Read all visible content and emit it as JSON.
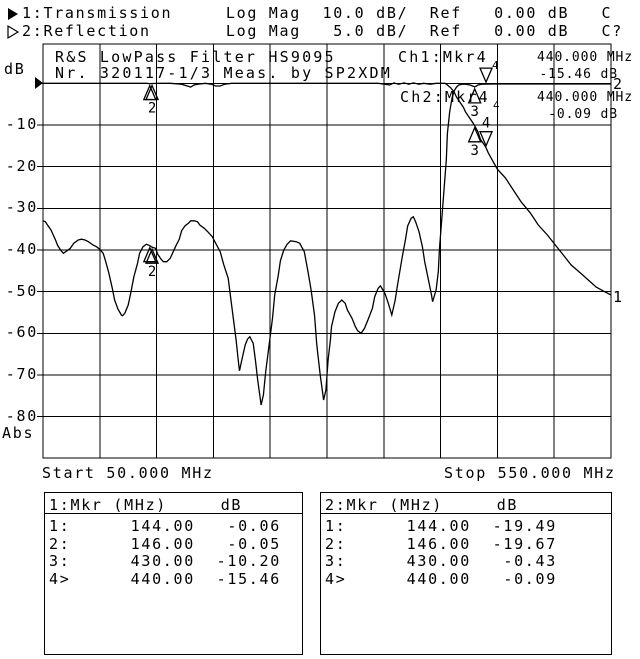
{
  "colors": {
    "foreground": "#000000",
    "background": "#ffffff"
  },
  "header": {
    "ch1_line": "1:Transmission     Log Mag  10.0 dB/  Ref   0.00 dB   C",
    "ch2_line": "2:Reflection       Log Mag   5.0 dB/  Ref   0.00 dB   C?"
  },
  "plot": {
    "title_line1": "R&S LowPass Filter HS9095",
    "title_line2": "Nr. 320117-1/3 Meas. by SP2XDM",
    "y_axis_unit": "dB",
    "y_axis_bottom": "Abs",
    "y_ticks": [
      "-10",
      "-20",
      "-30",
      "-40",
      "-50",
      "-60",
      "-70",
      "-80"
    ],
    "x_start_label": "Start 50.000 MHz",
    "x_stop_label": "Stop 550.000 MHz",
    "ch1_readout": {
      "label": "Ch1:Mkr4",
      "marker_sub": "4",
      "freq": "440.000 MHz",
      "value": "-15.46 dB"
    },
    "ch2_readout": {
      "label": "Ch2:Mkr4",
      "marker_sub": "4",
      "freq": "440.000 MHz",
      "value": "-0.09 dB"
    },
    "trace1_end_label": "1",
    "trace2_end_label": "2"
  },
  "chart_data": {
    "type": "line",
    "title": "R&S LowPass Filter HS9095",
    "xlabel": "Start 50.000 MHz ... Stop 550.000 MHz",
    "ylabel": "dB",
    "x_range_mhz": [
      50,
      550
    ],
    "x_divisions": 10,
    "y_divisions": 8,
    "grid": true,
    "series": [
      {
        "name": "Transmission",
        "channel": 1,
        "db_per_div": 10,
        "ref_db": 0,
        "points": [
          [
            50,
            0
          ],
          [
            65,
            0
          ],
          [
            83,
            0
          ],
          [
            100,
            0
          ],
          [
            118,
            0
          ],
          [
            135,
            0
          ],
          [
            141,
            0
          ],
          [
            144,
            -0.06
          ],
          [
            146,
            -0.05
          ],
          [
            153,
            0
          ],
          [
            162,
            0
          ],
          [
            172,
            -0.2
          ],
          [
            177,
            -0.65
          ],
          [
            180,
            -0.9
          ],
          [
            183,
            -0.4
          ],
          [
            186,
            -0.2
          ],
          [
            193,
            0
          ],
          [
            198,
            -0.2
          ],
          [
            202,
            -0.65
          ],
          [
            206,
            -0.65
          ],
          [
            210,
            -0.2
          ],
          [
            216,
            0
          ],
          [
            232,
            0
          ],
          [
            250,
            0
          ],
          [
            267,
            0
          ],
          [
            285,
            0
          ],
          [
            303,
            0
          ],
          [
            320,
            0
          ],
          [
            333,
            0
          ],
          [
            345,
            0
          ],
          [
            351,
            -0.2
          ],
          [
            355,
            -0.4
          ],
          [
            359,
            0.1
          ],
          [
            363,
            -0.2
          ],
          [
            368,
            0.1
          ],
          [
            372,
            -0.2
          ],
          [
            376,
            0.1
          ],
          [
            381,
            -0.2
          ],
          [
            385,
            0
          ],
          [
            391,
            -0.2
          ],
          [
            396,
            0
          ],
          [
            400,
            0
          ],
          [
            404,
            0
          ],
          [
            406,
            -0.4
          ],
          [
            409,
            -1.1
          ],
          [
            412,
            -2.1
          ],
          [
            414,
            -3.3
          ],
          [
            417,
            -4.5
          ],
          [
            420,
            -5.7
          ],
          [
            422,
            -6.9
          ],
          [
            425,
            -8.1
          ],
          [
            428,
            -9.3
          ],
          [
            430,
            -10.2
          ],
          [
            433,
            -11.7
          ],
          [
            435,
            -13.4
          ],
          [
            438,
            -14.6
          ],
          [
            440,
            -15.46
          ],
          [
            442,
            -16.7
          ],
          [
            446,
            -18.7
          ],
          [
            450,
            -20.6
          ],
          [
            457,
            -22.7
          ],
          [
            464,
            -25.6
          ],
          [
            471,
            -28.5
          ],
          [
            479,
            -31.1
          ],
          [
            486,
            -34
          ],
          [
            494,
            -36.4
          ],
          [
            501,
            -38.8
          ],
          [
            508,
            -41.2
          ],
          [
            515,
            -43.6
          ],
          [
            523,
            -45.5
          ],
          [
            530,
            -47.2
          ],
          [
            537,
            -48.9
          ],
          [
            545,
            -50.1
          ],
          [
            550,
            -50.8
          ]
        ]
      },
      {
        "name": "Reflection",
        "channel": 2,
        "db_per_div": 5,
        "ref_db": 0,
        "points": [
          [
            50,
            -16.5
          ],
          [
            52,
            -16.6
          ],
          [
            54,
            -17
          ],
          [
            57,
            -17.6
          ],
          [
            61,
            -18.8
          ],
          [
            63,
            -19.5
          ],
          [
            66,
            -20.1
          ],
          [
            68,
            -20.4
          ],
          [
            71,
            -20.1
          ],
          [
            74,
            -19.8
          ],
          [
            77,
            -19.2
          ],
          [
            81,
            -18.8
          ],
          [
            84,
            -18.7
          ],
          [
            87,
            -18.8
          ],
          [
            90,
            -19
          ],
          [
            94,
            -19.4
          ],
          [
            97,
            -19.6
          ],
          [
            100,
            -19.9
          ],
          [
            103,
            -20.4
          ],
          [
            105,
            -21.3
          ],
          [
            108,
            -22.8
          ],
          [
            111,
            -24.6
          ],
          [
            113,
            -26
          ],
          [
            116,
            -27.1
          ],
          [
            119,
            -27.8
          ],
          [
            120,
            -27.9
          ],
          [
            122,
            -27.6
          ],
          [
            125,
            -26.6
          ],
          [
            127,
            -25.3
          ],
          [
            130,
            -23.2
          ],
          [
            133,
            -21.7
          ],
          [
            135,
            -20.4
          ],
          [
            138,
            -19.6
          ],
          [
            141,
            -19.3
          ],
          [
            144,
            -19.49
          ],
          [
            146,
            -19.67
          ],
          [
            149,
            -19.8
          ],
          [
            151,
            -20.5
          ],
          [
            154,
            -21.1
          ],
          [
            156,
            -21.4
          ],
          [
            159,
            -21.4
          ],
          [
            162,
            -21
          ],
          [
            164,
            -20.4
          ],
          [
            167,
            -19.5
          ],
          [
            170,
            -18.7
          ],
          [
            172,
            -17.7
          ],
          [
            175,
            -17.1
          ],
          [
            178,
            -16.8
          ],
          [
            180,
            -16.5
          ],
          [
            183,
            -16.5
          ],
          [
            186,
            -16.6
          ],
          [
            188,
            -17
          ],
          [
            192,
            -17.4
          ],
          [
            195,
            -17.8
          ],
          [
            199,
            -18.4
          ],
          [
            202,
            -19.2
          ],
          [
            206,
            -20.2
          ],
          [
            209,
            -21.7
          ],
          [
            213,
            -23.4
          ],
          [
            216,
            -26.6
          ],
          [
            220,
            -30.8
          ],
          [
            222,
            -33.4
          ],
          [
            223,
            -34.5
          ],
          [
            225,
            -33.2
          ],
          [
            228,
            -31.4
          ],
          [
            230,
            -30.7
          ],
          [
            232,
            -30.4
          ],
          [
            235,
            -31.2
          ],
          [
            237,
            -33.2
          ],
          [
            239,
            -35.6
          ],
          [
            241,
            -37.6
          ],
          [
            242,
            -38.6
          ],
          [
            244,
            -37.4
          ],
          [
            246,
            -34.6
          ],
          [
            249,
            -31.4
          ],
          [
            252,
            -28.2
          ],
          [
            254,
            -25.4
          ],
          [
            257,
            -23.1
          ],
          [
            259,
            -21.3
          ],
          [
            262,
            -20
          ],
          [
            265,
            -19.3
          ],
          [
            268,
            -18.9
          ],
          [
            273,
            -19
          ],
          [
            276,
            -19.2
          ],
          [
            280,
            -20.2
          ],
          [
            283,
            -22.4
          ],
          [
            286,
            -24.8
          ],
          [
            289,
            -27.8
          ],
          [
            291,
            -31.4
          ],
          [
            294,
            -35
          ],
          [
            296,
            -37
          ],
          [
            297,
            -38
          ],
          [
            299,
            -36.8
          ],
          [
            301,
            -33.2
          ],
          [
            303,
            -30.8
          ],
          [
            304,
            -29.2
          ],
          [
            307,
            -27.4
          ],
          [
            310,
            -26.4
          ],
          [
            313,
            -26
          ],
          [
            316,
            -26.4
          ],
          [
            318,
            -27.2
          ],
          [
            322,
            -28.2
          ],
          [
            325,
            -29.2
          ],
          [
            327,
            -29.7
          ],
          [
            330,
            -30
          ],
          [
            333,
            -29.4
          ],
          [
            336,
            -28.4
          ],
          [
            340,
            -27
          ],
          [
            342,
            -25.6
          ],
          [
            345,
            -24.6
          ],
          [
            347,
            -24.3
          ],
          [
            351,
            -25.2
          ],
          [
            354,
            -26.4
          ],
          [
            357,
            -27.8
          ],
          [
            360,
            -26
          ],
          [
            362,
            -24.3
          ],
          [
            366,
            -21
          ],
          [
            369,
            -18.8
          ],
          [
            371,
            -17.1
          ],
          [
            374,
            -16.2
          ],
          [
            376,
            -16
          ],
          [
            378,
            -16.6
          ],
          [
            381,
            -17.8
          ],
          [
            384,
            -19.6
          ],
          [
            386,
            -21.4
          ],
          [
            389,
            -23.4
          ],
          [
            392,
            -25.4
          ],
          [
            393,
            -26.2
          ],
          [
            396,
            -24.8
          ],
          [
            398,
            -22.6
          ],
          [
            399,
            -19.8
          ],
          [
            401,
            -16.4
          ],
          [
            403,
            -12.8
          ],
          [
            405,
            -9.2
          ],
          [
            406,
            -6
          ],
          [
            408,
            -3.4
          ],
          [
            410,
            -1.8
          ],
          [
            412,
            -0.9
          ],
          [
            414,
            -0.45
          ],
          [
            416,
            -0.2
          ],
          [
            419,
            -0.1
          ],
          [
            422,
            -0.1
          ],
          [
            426,
            -0.2
          ],
          [
            430,
            -0.43
          ],
          [
            433,
            -0.2
          ],
          [
            436,
            -0.1
          ],
          [
            440,
            -0.09
          ],
          [
            448,
            -0.08
          ],
          [
            457,
            -0.08
          ],
          [
            470,
            -0.08
          ],
          [
            487,
            -0.08
          ],
          [
            505,
            -0.08
          ],
          [
            523,
            -0.08
          ],
          [
            540,
            -0.08
          ],
          [
            550,
            -0.08
          ]
        ]
      }
    ],
    "markers": [
      {
        "channel": 1,
        "n": "1",
        "mhz": 144,
        "db": -0.06,
        "active": false,
        "number_visible": false
      },
      {
        "channel": 1,
        "n": "2",
        "mhz": 146,
        "db": -0.05,
        "active": false,
        "number_visible": true
      },
      {
        "channel": 1,
        "n": "3",
        "mhz": 430,
        "db": -10.2,
        "active": false,
        "number_visible": true
      },
      {
        "channel": 1,
        "n": "4",
        "mhz": 440,
        "db": -15.46,
        "active": true,
        "number_visible": true
      },
      {
        "channel": 2,
        "n": "1",
        "mhz": 144,
        "db": -19.49,
        "active": false,
        "number_visible": false
      },
      {
        "channel": 2,
        "n": "2",
        "mhz": 146,
        "db": -19.67,
        "active": false,
        "number_visible": true
      },
      {
        "channel": 2,
        "n": "3",
        "mhz": 430,
        "db": -0.43,
        "active": false,
        "number_visible": true
      },
      {
        "channel": 2,
        "n": "4",
        "mhz": 440,
        "db": -0.09,
        "active": true,
        "number_visible": false
      }
    ]
  },
  "tables": [
    {
      "header": "1:Mkr (MHz)     dB",
      "rows": [
        [
          "1:",
          "144.00",
          "-0.06"
        ],
        [
          "2:",
          "146.00",
          "-0.05"
        ],
        [
          "3:",
          "430.00",
          "-10.20"
        ],
        [
          "4>",
          "440.00",
          "-15.46"
        ]
      ]
    },
    {
      "header": "2:Mkr (MHz)     dB",
      "rows": [
        [
          "1:",
          "144.00",
          "-19.49"
        ],
        [
          "2:",
          "146.00",
          "-19.67"
        ],
        [
          "3:",
          "430.00",
          "-0.43"
        ],
        [
          "4>",
          "440.00",
          "-0.09"
        ]
      ]
    }
  ]
}
